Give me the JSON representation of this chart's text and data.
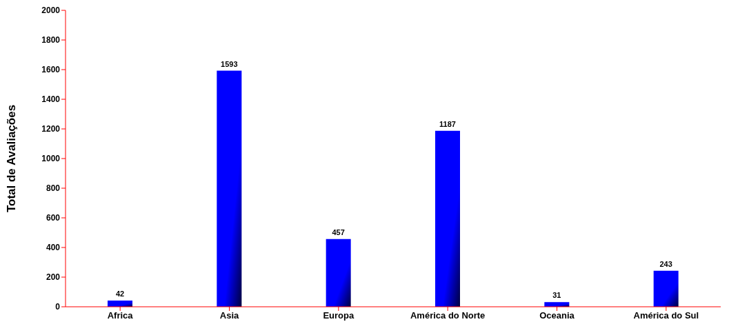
{
  "chart_data": {
    "type": "bar",
    "ylabel": "Total de Avaliações",
    "categories": [
      "Africa",
      "Asia",
      "Europa",
      "América do Norte",
      "Oceania",
      "América do Sul"
    ],
    "values": [
      42,
      1593,
      457,
      1187,
      31,
      243
    ],
    "color": "#0000ff",
    "ylim": [
      0,
      2000
    ],
    "yticks": [
      0,
      200,
      400,
      600,
      800,
      1000,
      1200,
      1400,
      1600,
      1800,
      2000
    ],
    "data_labels": true
  }
}
